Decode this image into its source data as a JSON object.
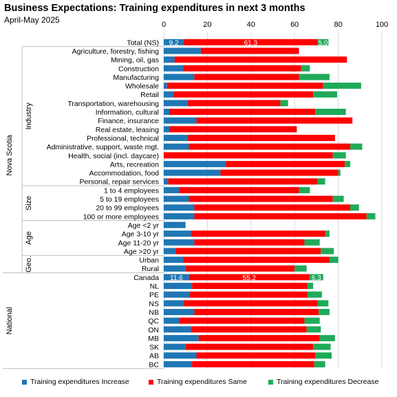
{
  "chart_data": {
    "type": "bar",
    "orientation": "horizontal",
    "stacked": true,
    "title": "Business Expectations: Training expenditures in next 3 months",
    "subtitle": "April-May 2025",
    "xlim": [
      0,
      100
    ],
    "xticks": [
      0,
      20,
      40,
      60,
      80,
      100
    ],
    "grid": true,
    "legend_position": "bottom",
    "series": [
      {
        "name": "Training expenditures Increase",
        "color": "#1f77b4"
      },
      {
        "name": "Training expenditures Same",
        "color": "#ff0000"
      },
      {
        "name": "Training expenditures Decrease",
        "color": "#1faa59"
      }
    ],
    "groups": [
      {
        "label": "Nova Scotia",
        "start": 0,
        "end": 26
      },
      {
        "label": "National",
        "start": 27,
        "end": 37
      }
    ],
    "subgroups": [
      {
        "label": "Industry",
        "start": 1,
        "end": 16
      },
      {
        "label": "Size",
        "start": 17,
        "end": 20
      },
      {
        "label": "Age",
        "start": 21,
        "end": 24
      },
      {
        "label": "Geo.",
        "start": 25,
        "end": 26
      }
    ],
    "rows": [
      {
        "label": "Total (NS)",
        "values": [
          9.2,
          61.3,
          5.0
        ],
        "show_labels": true
      },
      {
        "label": "Agriculture, forestry, fishing",
        "values": [
          17,
          45,
          0
        ]
      },
      {
        "label": "Mining, oil, gas",
        "values": [
          5,
          79,
          0
        ]
      },
      {
        "label": "Construction",
        "values": [
          9,
          54,
          4
        ]
      },
      {
        "label": "Manufacturing",
        "values": [
          14,
          48,
          14
        ]
      },
      {
        "label": "Wholesale",
        "values": [
          1.5,
          71.5,
          17.5
        ]
      },
      {
        "label": "Retail",
        "values": [
          4.5,
          64,
          11
        ]
      },
      {
        "label": "Transportation, warehousing",
        "values": [
          11,
          42.5,
          3.5
        ]
      },
      {
        "label": "Information, cultural",
        "values": [
          2.5,
          67,
          14
        ]
      },
      {
        "label": "Finance, insurance",
        "values": [
          15,
          71.5,
          0
        ]
      },
      {
        "label": "Real estate, leasing",
        "values": [
          2.5,
          58.5,
          0
        ]
      },
      {
        "label": "Professional, technical",
        "values": [
          11,
          67.5,
          0
        ]
      },
      {
        "label": "Administrative, support, waste mgt.",
        "values": [
          11.5,
          74,
          5.5
        ]
      },
      {
        "label": "Health, social (incl. daycare)",
        "values": [
          0,
          77.5,
          6
        ]
      },
      {
        "label": "Arts, recreation",
        "values": [
          28.5,
          54.5,
          2.5
        ]
      },
      {
        "label": "Accommodation, food",
        "values": [
          26,
          54,
          1
        ]
      },
      {
        "label": "Personal, repair services",
        "values": [
          2,
          68.5,
          3.5
        ]
      },
      {
        "label": "1 to 4 employees",
        "values": [
          7,
          55,
          5
        ]
      },
      {
        "label": "5 to 19 employees",
        "values": [
          11.5,
          66,
          5
        ]
      },
      {
        "label": "20 to 99 employees",
        "values": [
          14,
          71.5,
          4
        ]
      },
      {
        "label": "100 or more employees",
        "values": [
          14,
          79,
          4
        ]
      },
      {
        "label": "Age <2 yr",
        "values": [
          10,
          0,
          0
        ]
      },
      {
        "label": "Age 3-10 yr",
        "values": [
          12.5,
          61.5,
          2
        ]
      },
      {
        "label": "Age 11-20 yr",
        "values": [
          14,
          50.5,
          7
        ]
      },
      {
        "label": "Age >20 yr",
        "values": [
          5.5,
          66.5,
          6
        ]
      },
      {
        "label": "Urban",
        "values": [
          9,
          67,
          4
        ]
      },
      {
        "label": "Rural",
        "values": [
          10,
          50,
          5.5
        ]
      },
      {
        "label": "Canada",
        "values": [
          11.6,
          55.2,
          6.3
        ],
        "show_labels": true
      },
      {
        "label": "NL",
        "values": [
          13,
          53,
          2.5
        ]
      },
      {
        "label": "PE",
        "values": [
          12,
          54,
          6.5
        ]
      },
      {
        "label": "NS",
        "values": [
          9.2,
          61.3,
          5.0
        ]
      },
      {
        "label": "NB",
        "values": [
          14,
          57,
          5
        ]
      },
      {
        "label": "QC",
        "values": [
          7,
          57.5,
          7
        ]
      },
      {
        "label": "ON",
        "values": [
          12.5,
          53,
          6.5
        ]
      },
      {
        "label": "MB",
        "values": [
          16,
          55.5,
          7
        ]
      },
      {
        "label": "SK",
        "values": [
          10,
          58.5,
          8
        ]
      },
      {
        "label": "AB",
        "values": [
          15,
          54.5,
          7.5
        ]
      },
      {
        "label": "BC",
        "values": [
          13,
          56,
          5
        ]
      }
    ]
  }
}
